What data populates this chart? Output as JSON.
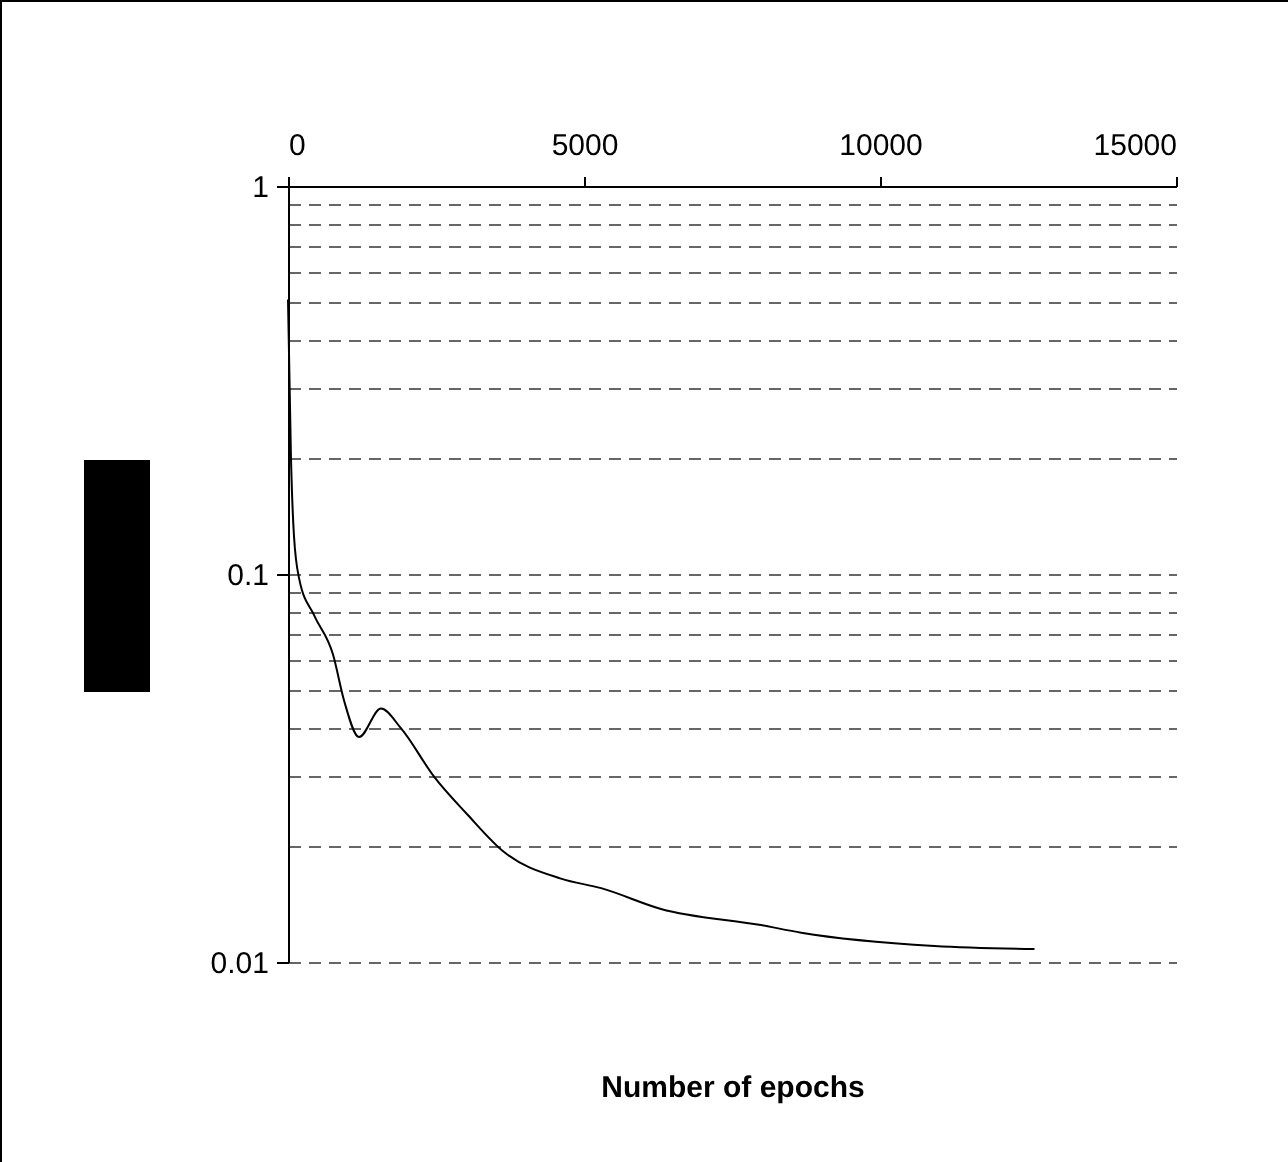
{
  "chart_data": {
    "type": "line",
    "xlabel": "Number of epochs",
    "log": "y",
    "grid": "y",
    "line_style": "solid",
    "marker": "none",
    "x": [
      0,
      50,
      100,
      190,
      446,
      760,
      950,
      1200,
      1570,
      1910,
      2470,
      3030,
      3650,
      4610,
      5290,
      6300,
      7990,
      8670,
      10920,
      12610
    ],
    "series": [
      {
        "color": "#000000",
        "values": [
          0.51,
          0.2,
          0.126,
          0.097,
          0.078,
          0.062,
          0.047,
          0.038,
          0.045,
          0.04,
          0.03,
          0.024,
          0.0192,
          0.0164,
          0.0155,
          0.0137,
          0.01245,
          0.0119,
          0.011,
          0.0108
        ]
      }
    ],
    "xlim": [
      0,
      15000
    ],
    "xticks": [
      0,
      5000,
      10000,
      15000
    ],
    "ylim": [
      0.01,
      1
    ],
    "yticks": [
      0.01,
      {
        "value": 0.02,
        "label": null
      },
      {
        "value": 0.03,
        "label": null
      },
      {
        "value": 0.04,
        "label": null
      },
      {
        "value": 0.05,
        "label": null
      },
      {
        "value": 0.06,
        "label": null
      },
      {
        "value": 0.07,
        "label": null
      },
      {
        "value": 0.08,
        "label": null
      },
      {
        "value": 0.09,
        "label": null
      },
      0.1,
      {
        "value": 0.2,
        "label": null
      },
      {
        "value": 0.3,
        "label": null
      },
      {
        "value": 0.4,
        "label": null
      },
      {
        "value": 0.5,
        "label": null
      },
      {
        "value": 0.6,
        "label": null
      },
      {
        "value": 0.7,
        "label": null
      },
      {
        "value": 0.8,
        "label": null
      },
      {
        "value": 0.9,
        "label": null
      },
      1
    ]
  }
}
